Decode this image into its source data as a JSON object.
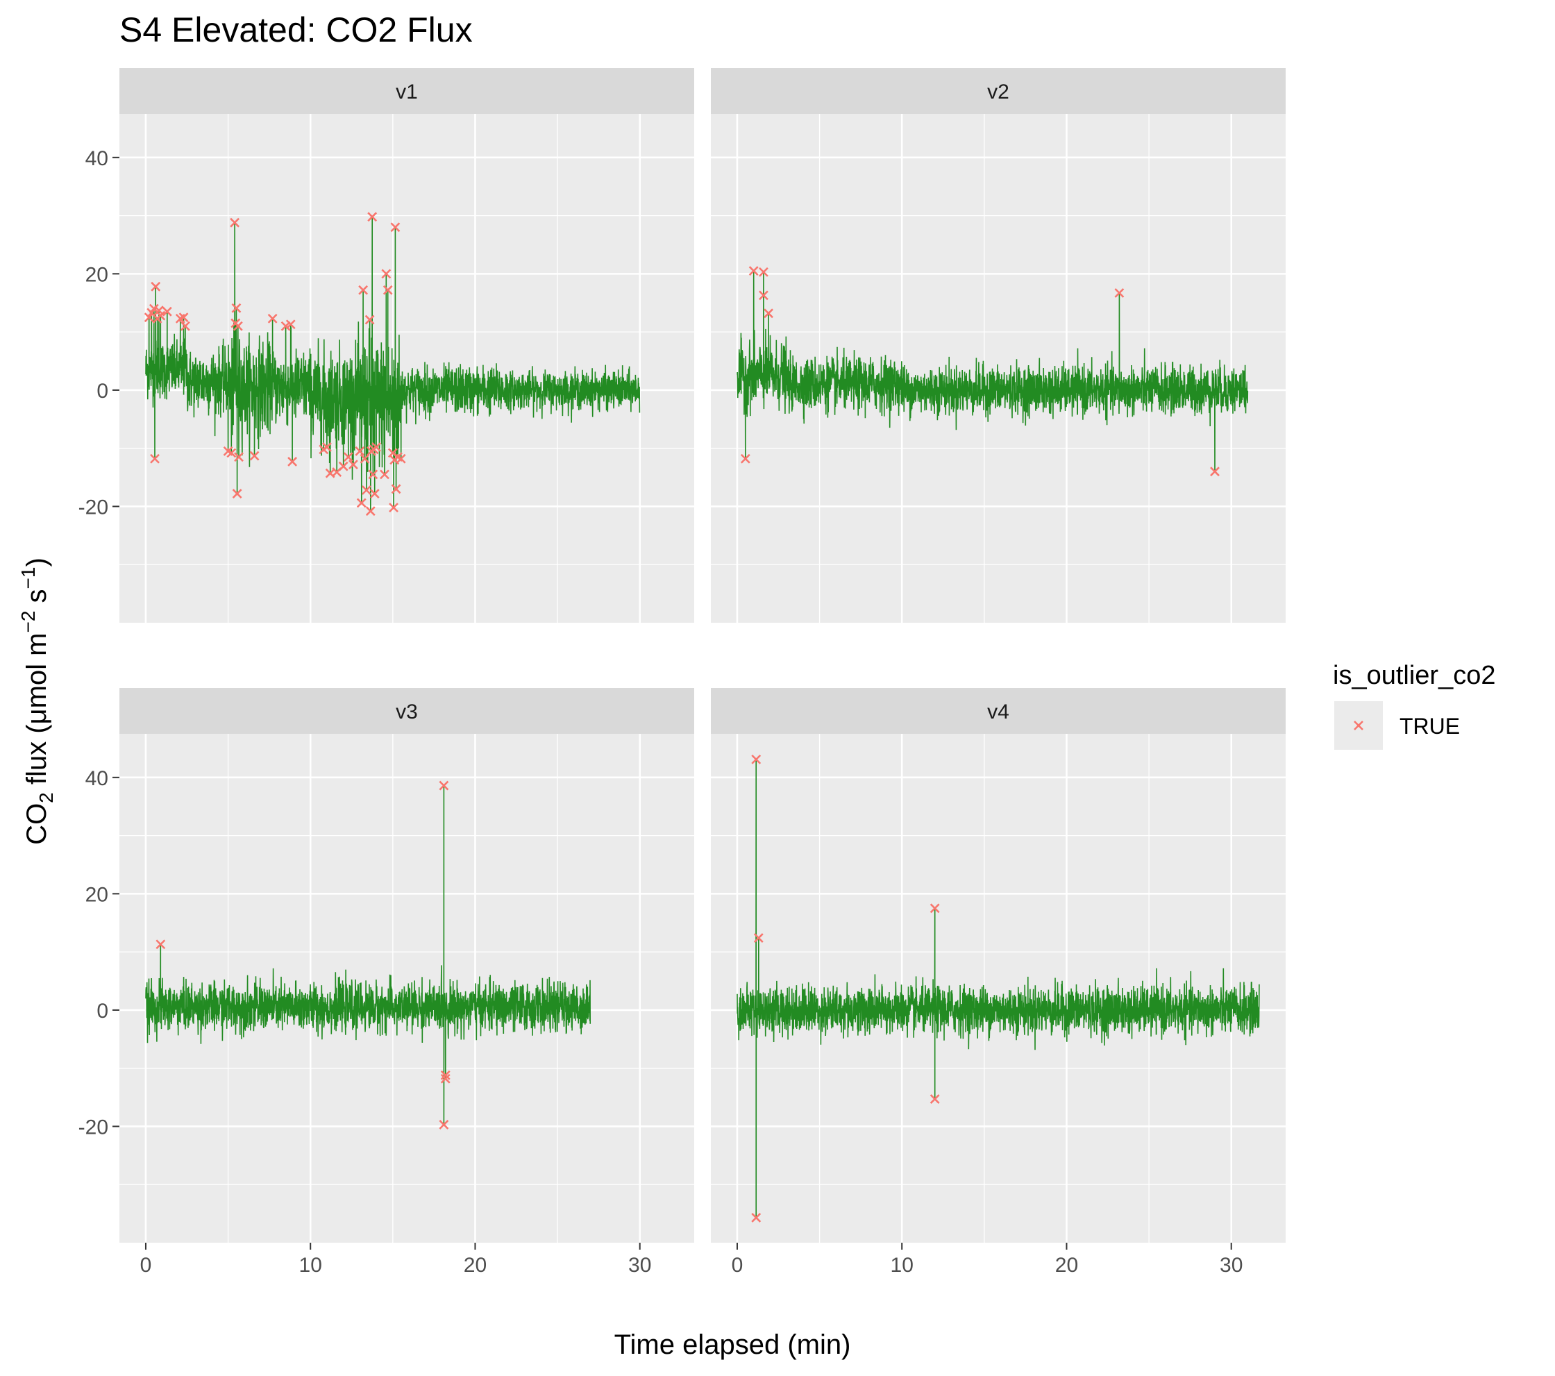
{
  "chart_data": {
    "type": "line",
    "title": "S4 Elevated: CO2 Flux",
    "xlabel": "Time elapsed (min)",
    "ylabel": {
      "prefix": "CO",
      "sub": "2",
      "mid": " flux (μmol m",
      "sup1": "−2",
      "mid2": " s",
      "sup2": "−1",
      "suffix": ")"
    },
    "xlim": [
      -1.6,
      33.3
    ],
    "ylim": [
      -40,
      47.5
    ],
    "x_ticks": [
      0,
      10,
      20,
      30
    ],
    "y_ticks": [
      -20,
      0,
      20,
      40
    ],
    "grid": true,
    "line_color": "#228B22",
    "outlier_color": "#F8766D",
    "legend": {
      "title": "is_outlier_co2",
      "entries": [
        {
          "label": "TRUE",
          "marker": "x-cross",
          "color": "#F8766D"
        }
      ],
      "placement": "right"
    },
    "facets": [
      {
        "name": "v1",
        "x_end": 30.0,
        "segments": [
          {
            "x": [
              0,
              2.5
            ],
            "mean": 3.5,
            "amp": 5.5
          },
          {
            "x": [
              2.5,
              5.0
            ],
            "mean": 1.5,
            "amp": 6
          },
          {
            "x": [
              5.0,
              7.5
            ],
            "mean": 0.5,
            "amp": 9
          },
          {
            "x": [
              7.5,
              10.0
            ],
            "mean": 0.5,
            "amp": 7
          },
          {
            "x": [
              10.0,
              13.0
            ],
            "mean": -1,
            "amp": 9
          },
          {
            "x": [
              13.0,
              15.5
            ],
            "mean": -2,
            "amp": 12
          },
          {
            "x": [
              15.5,
              22.0
            ],
            "mean": 0,
            "amp": 4.5
          },
          {
            "x": [
              22.0,
              30.0
            ],
            "mean": 0,
            "amp": 3.5
          }
        ],
        "outliers": [
          {
            "x": 0.2,
            "y": 12.5
          },
          {
            "x": 0.35,
            "y": 13.3
          },
          {
            "x": 0.5,
            "y": 14
          },
          {
            "x": 0.55,
            "y": -11.8
          },
          {
            "x": 0.6,
            "y": 17.8
          },
          {
            "x": 0.7,
            "y": 12.3
          },
          {
            "x": 0.8,
            "y": 13.7
          },
          {
            "x": 0.9,
            "y": 12.8
          },
          {
            "x": 1.3,
            "y": 13.5
          },
          {
            "x": 2.1,
            "y": 12.3
          },
          {
            "x": 2.3,
            "y": 12.5
          },
          {
            "x": 2.4,
            "y": 11
          },
          {
            "x": 5.0,
            "y": -10.5
          },
          {
            "x": 5.2,
            "y": -10.8
          },
          {
            "x": 5.4,
            "y": 28.8
          },
          {
            "x": 5.45,
            "y": 11.5
          },
          {
            "x": 5.5,
            "y": 14.1
          },
          {
            "x": 5.55,
            "y": -17.8
          },
          {
            "x": 5.6,
            "y": 11
          },
          {
            "x": 5.65,
            "y": -11.5
          },
          {
            "x": 6.6,
            "y": -11.3
          },
          {
            "x": 7.7,
            "y": 12.3
          },
          {
            "x": 8.5,
            "y": 11
          },
          {
            "x": 8.8,
            "y": 11.3
          },
          {
            "x": 8.9,
            "y": -12.3
          },
          {
            "x": 10.8,
            "y": -10.2
          },
          {
            "x": 11.0,
            "y": -9.8
          },
          {
            "x": 11.2,
            "y": -14.3
          },
          {
            "x": 11.6,
            "y": -14.1
          },
          {
            "x": 12.0,
            "y": -13.1
          },
          {
            "x": 12.3,
            "y": -11.5
          },
          {
            "x": 12.6,
            "y": -12.8
          },
          {
            "x": 13.0,
            "y": -10.5
          },
          {
            "x": 13.1,
            "y": -19.4
          },
          {
            "x": 13.2,
            "y": 17.2
          },
          {
            "x": 13.3,
            "y": -11.8
          },
          {
            "x": 13.4,
            "y": -17.2
          },
          {
            "x": 13.6,
            "y": 12.1
          },
          {
            "x": 13.65,
            "y": -20.8
          },
          {
            "x": 13.7,
            "y": -10.5
          },
          {
            "x": 13.75,
            "y": 29.8
          },
          {
            "x": 13.8,
            "y": -14.5
          },
          {
            "x": 13.85,
            "y": -10.2
          },
          {
            "x": 13.9,
            "y": -17.8
          },
          {
            "x": 14.0,
            "y": -9.8
          },
          {
            "x": 14.5,
            "y": -14.5
          },
          {
            "x": 14.6,
            "y": 20
          },
          {
            "x": 14.7,
            "y": 17.2
          },
          {
            "x": 15.0,
            "y": -10.8
          },
          {
            "x": 15.05,
            "y": -20.2
          },
          {
            "x": 15.1,
            "y": -12
          },
          {
            "x": 15.15,
            "y": 28
          },
          {
            "x": 15.2,
            "y": -17
          },
          {
            "x": 15.3,
            "y": -11.5
          },
          {
            "x": 15.5,
            "y": -11.8
          }
        ]
      },
      {
        "name": "v2",
        "x_end": 31.0,
        "segments": [
          {
            "x": [
              0,
              3.0
            ],
            "mean": 2.5,
            "amp": 6
          },
          {
            "x": [
              3.0,
              10.0
            ],
            "mean": 1,
            "amp": 5
          },
          {
            "x": [
              10.0,
              31.0
            ],
            "mean": 0,
            "amp": 4.5
          }
        ],
        "outliers": [
          {
            "x": 0.5,
            "y": -11.8
          },
          {
            "x": 1.0,
            "y": 20.5
          },
          {
            "x": 1.6,
            "y": 20.3
          },
          {
            "x": 1.6,
            "y": 16.3
          },
          {
            "x": 1.9,
            "y": 13.2
          },
          {
            "x": 23.2,
            "y": 16.7
          },
          {
            "x": 29.0,
            "y": -14
          }
        ]
      },
      {
        "name": "v3",
        "x_end": 27.0,
        "segments": [
          {
            "x": [
              0,
              27.0
            ],
            "mean": 0.5,
            "amp": 4.5
          }
        ],
        "outliers": [
          {
            "x": 0.9,
            "y": 11.3
          },
          {
            "x": 18.1,
            "y": 38.6
          },
          {
            "x": 18.2,
            "y": -11.2
          },
          {
            "x": 18.2,
            "y": -11.8
          },
          {
            "x": 18.1,
            "y": -19.7
          }
        ]
      },
      {
        "name": "v4",
        "x_end": 31.7,
        "segments": [
          {
            "x": [
              0,
              31.7
            ],
            "mean": 0,
            "amp": 4.5
          }
        ],
        "outliers": [
          {
            "x": 1.15,
            "y": 43.1
          },
          {
            "x": 1.3,
            "y": 12.4
          },
          {
            "x": 1.15,
            "y": -35.7
          },
          {
            "x": 12.0,
            "y": 17.5
          },
          {
            "x": 12.0,
            "y": -15.3
          }
        ]
      }
    ]
  }
}
